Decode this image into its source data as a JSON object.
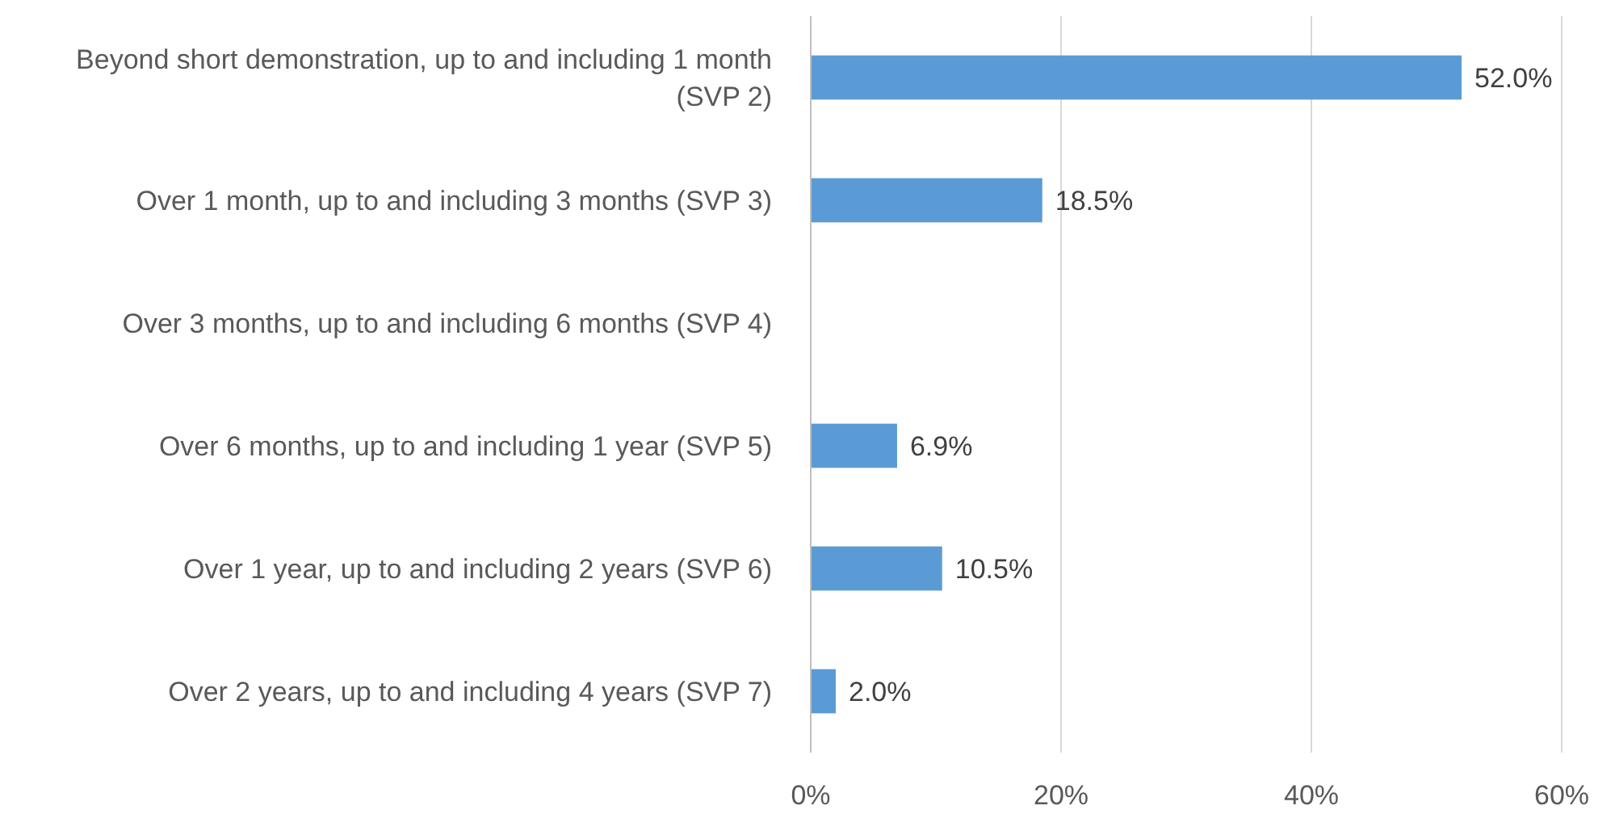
{
  "chart_data": {
    "type": "bar",
    "orientation": "horizontal",
    "categories": [
      "Beyond short demonstration, up to and including 1 month (SVP 2)",
      "Over 1 month, up to and including 3 months (SVP 3)",
      "Over 3 months, up to and including 6 months (SVP 4)",
      "Over 6 months, up to and including 1 year (SVP 5)",
      "Over 1 year, up to and including 2 years (SVP 6)",
      "Over 2 years, up to and including 4 years (SVP 7)"
    ],
    "values": [
      52.0,
      18.5,
      null,
      6.9,
      10.5,
      2.0
    ],
    "value_labels": [
      "52.0%",
      "18.5%",
      null,
      "6.9%",
      "10.5%",
      "2.0%"
    ],
    "color": "#5b9bd5",
    "xlim": [
      0,
      60
    ],
    "xticks": [
      {
        "value": 0,
        "label": "0%"
      },
      {
        "value": 20,
        "label": "20%"
      },
      {
        "value": 40,
        "label": "40%"
      },
      {
        "value": 60,
        "label": "60%"
      }
    ],
    "grid": "x"
  }
}
